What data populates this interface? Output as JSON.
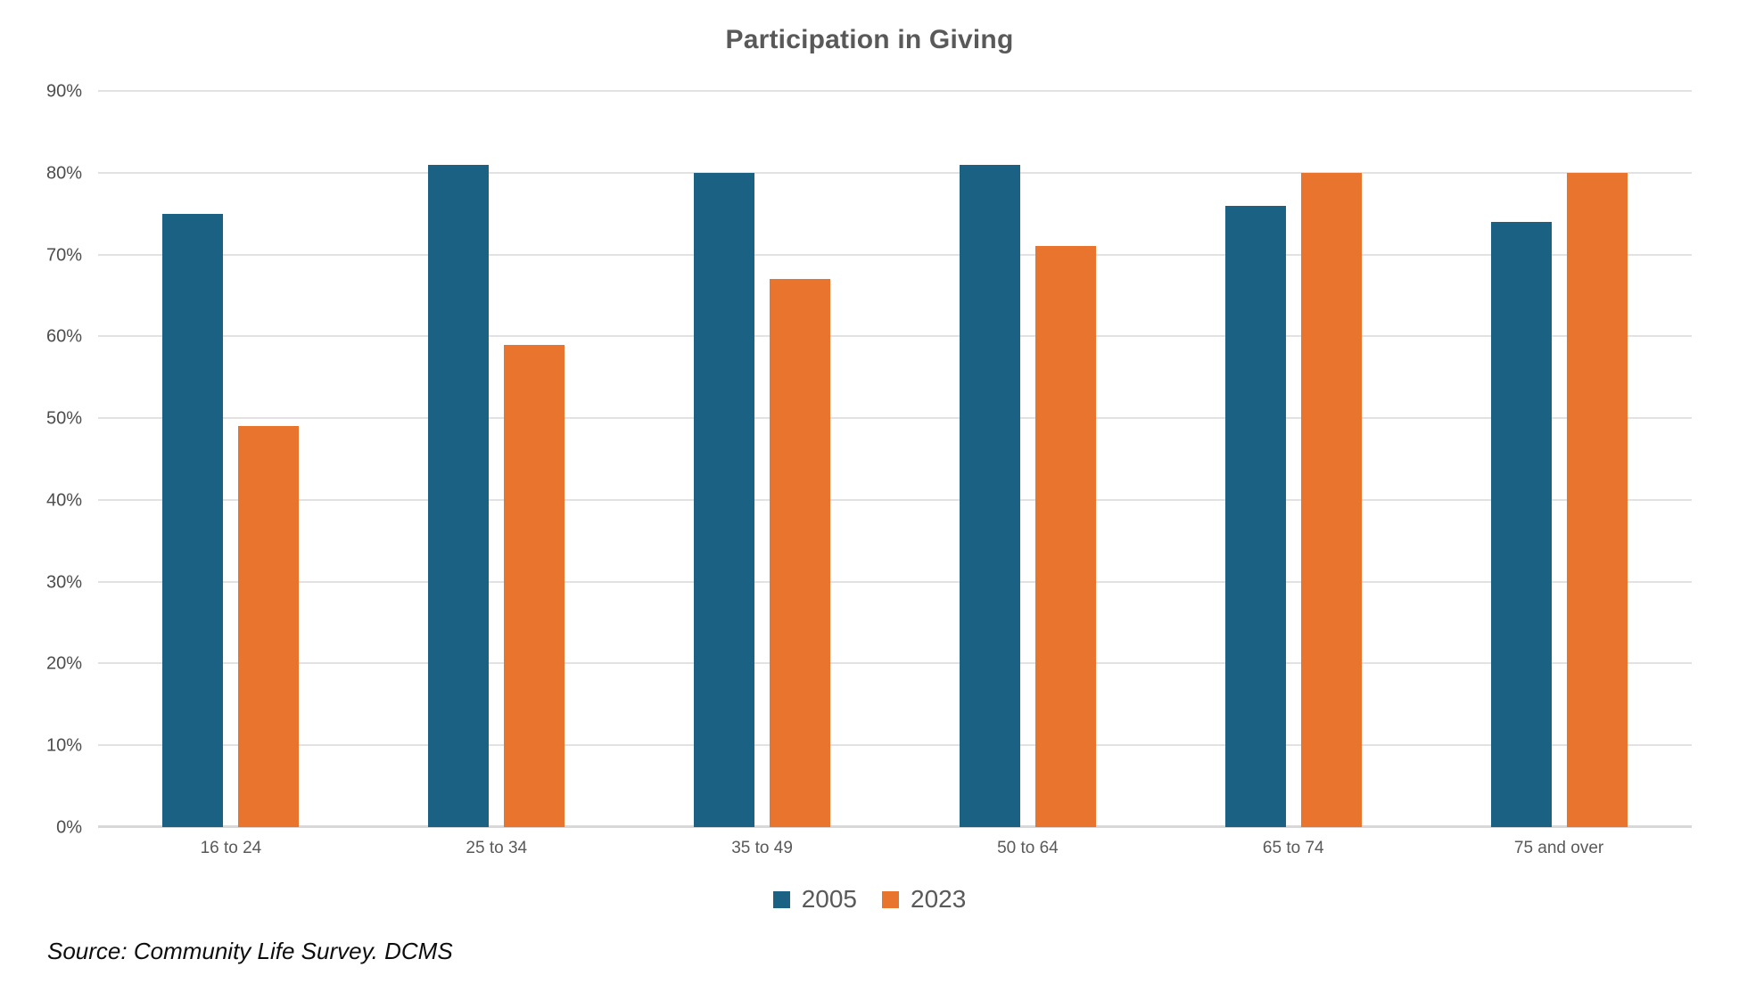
{
  "chart_data": {
    "type": "bar",
    "title": "Participation in Giving",
    "categories": [
      "16 to 24",
      "25 to 34",
      "35 to 49",
      "50 to 64",
      "65 to 74",
      "75 and over"
    ],
    "series": [
      {
        "name": "2005",
        "color": "#1A6183",
        "values": [
          75,
          81,
          80,
          81,
          76,
          74
        ]
      },
      {
        "name": "2023",
        "color": "#E8742D",
        "values": [
          49,
          59,
          67,
          71,
          80,
          80
        ]
      }
    ],
    "xlabel": "",
    "ylabel": "",
    "ylim": [
      0,
      90
    ],
    "ytick_step": 10,
    "ytick_suffix": "%",
    "grid": true,
    "legend_position": "bottom"
  },
  "source_note": "Source: Community Life Survey. DCMS",
  "colors": {
    "background": "#FFFFFF",
    "title_text": "#595959",
    "ytick_text": "#4D4D4D",
    "xtick_text": "#595959",
    "gridline": "#E2E2E2",
    "axis_line": "#D8D8D8",
    "source_text": "#0D0D0D"
  }
}
